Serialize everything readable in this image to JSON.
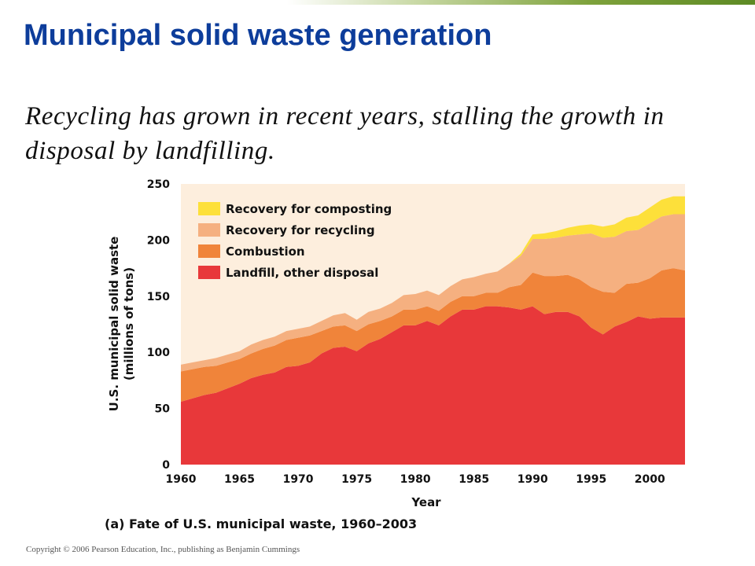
{
  "slide": {
    "title": "Municipal solid waste generation",
    "subtitle": "Recycling has grown in recent years, stalling the growth in disposal by landfilling.",
    "copyright": "Copyright © 2006 Pearson Education, Inc., publishing as Benjamin Cummings"
  },
  "chart_data": {
    "type": "area",
    "stacked": true,
    "caption": "(a) Fate of U.S. municipal waste, 1960–2003",
    "xlabel": "Year",
    "ylabel_line1": "U.S. municipal solid waste",
    "ylabel_line2": "(millions of tons)",
    "xlim": [
      1960,
      2003
    ],
    "ylim": [
      0,
      250
    ],
    "xticks": [
      1960,
      1965,
      1970,
      1975,
      1980,
      1985,
      1990,
      1995,
      2000
    ],
    "yticks": [
      0,
      50,
      100,
      150,
      200,
      250
    ],
    "legend_position": "top-left",
    "x": [
      1960,
      1961,
      1962,
      1963,
      1964,
      1965,
      1966,
      1967,
      1968,
      1969,
      1970,
      1971,
      1972,
      1973,
      1974,
      1975,
      1976,
      1977,
      1978,
      1979,
      1980,
      1981,
      1982,
      1983,
      1984,
      1985,
      1986,
      1987,
      1988,
      1989,
      1990,
      1991,
      1992,
      1993,
      1994,
      1995,
      1996,
      1997,
      1998,
      1999,
      2000,
      2001,
      2002,
      2003
    ],
    "series": [
      {
        "name": "Landfill, other disposal",
        "color": "#e8383a",
        "values": [
          56,
          59,
          62,
          64,
          68,
          72,
          77,
          80,
          82,
          87,
          88,
          91,
          99,
          104,
          105,
          101,
          108,
          112,
          118,
          124,
          124,
          128,
          124,
          132,
          138,
          138,
          141,
          141,
          140,
          138,
          141,
          134,
          136,
          136,
          132,
          122,
          116,
          123,
          127,
          132,
          130,
          131,
          131,
          131
        ]
      },
      {
        "name": "Combustion",
        "color": "#f0843a",
        "values": [
          27,
          26,
          25,
          24,
          23,
          22,
          22,
          23,
          24,
          24,
          25,
          24,
          20,
          19,
          19,
          18,
          17,
          16,
          14,
          14,
          14,
          13,
          13,
          13,
          12,
          12,
          12,
          12,
          18,
          22,
          30,
          34,
          32,
          33,
          33,
          36,
          38,
          30,
          34,
          30,
          36,
          42,
          44,
          42
        ]
      },
      {
        "name": "Recovery for recycling",
        "color": "#f5b080",
        "values": [
          6,
          6,
          6,
          7,
          7,
          7,
          8,
          8,
          8,
          8,
          8,
          8,
          9,
          10,
          11,
          10,
          11,
          11,
          12,
          13,
          14,
          14,
          14,
          14,
          15,
          17,
          17,
          19,
          21,
          26,
          30,
          33,
          34,
          35,
          40,
          48,
          48,
          50,
          47,
          47,
          49,
          48,
          48,
          50
        ]
      },
      {
        "name": "Recovery for composting",
        "color": "#fde03a",
        "values": [
          0,
          0,
          0,
          0,
          0,
          0,
          0,
          0,
          0,
          0,
          0,
          0,
          0,
          0,
          0,
          0,
          0,
          0,
          0,
          0,
          0,
          0,
          0,
          0,
          0,
          0,
          0,
          0,
          0,
          2,
          4,
          5,
          6,
          7,
          8,
          8,
          10,
          11,
          12,
          13,
          14,
          15,
          16,
          16
        ]
      }
    ]
  }
}
